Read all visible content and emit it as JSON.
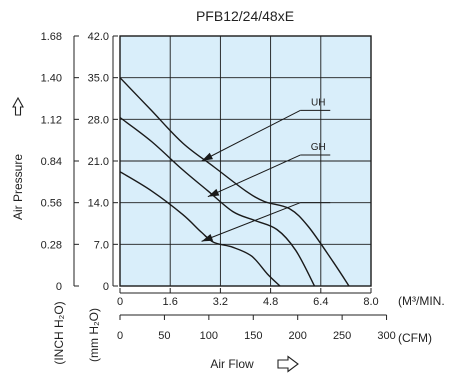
{
  "chart_data": {
    "type": "line",
    "title": "PFB12/24/48xE",
    "xlabel": "Air Flow",
    "ylabel": "Air Pressure",
    "x_axes": {
      "m3_min": {
        "unit": "(M³/MIN.",
        "ticks": [
          "0",
          "1.6",
          "3.2",
          "4.8",
          "6.4",
          "8.0"
        ],
        "range": [
          0,
          8.0
        ]
      },
      "cfm": {
        "unit": "(CFM)",
        "ticks": [
          "0",
          "50",
          "100",
          "150",
          "200",
          "250",
          "300"
        ],
        "range": [
          0,
          282.5
        ]
      }
    },
    "y_axes": {
      "mm_h2o": {
        "unit": "(mm H₂O)",
        "ticks": [
          "0",
          "7.0",
          "14.0",
          "21.0",
          "28.0",
          "35.0",
          "42.0"
        ],
        "range": [
          0,
          42.0
        ]
      },
      "inch_h2o": {
        "unit": "(INCH H₂O)",
        "ticks": [
          "0",
          "0.28",
          "0.56",
          "0.84",
          "1.12",
          "1.40",
          "1.68"
        ],
        "range": [
          0,
          1.68
        ]
      }
    },
    "grid": true,
    "series": [
      {
        "name": "UH",
        "x_unit": "m3_min",
        "y_unit": "mm_h2o",
        "points": [
          [
            0,
            35.0
          ],
          [
            1.0,
            29.5
          ],
          [
            2.0,
            24.0
          ],
          [
            3.0,
            20.0
          ],
          [
            4.0,
            16.0
          ],
          [
            4.6,
            14.2
          ],
          [
            5.4,
            13.0
          ],
          [
            6.0,
            10.0
          ],
          [
            6.8,
            4.0
          ],
          [
            7.3,
            0
          ]
        ]
      },
      {
        "name": "GH",
        "x_unit": "m3_min",
        "y_unit": "mm_h2o",
        "points": [
          [
            0,
            28.3
          ],
          [
            1.0,
            24.3
          ],
          [
            2.0,
            19.5
          ],
          [
            2.8,
            16.0
          ],
          [
            3.6,
            12.5
          ],
          [
            4.3,
            11.0
          ],
          [
            5.0,
            9.5
          ],
          [
            5.6,
            6.0
          ],
          [
            6.2,
            0
          ]
        ]
      },
      {
        "name": "",
        "x_unit": "m3_min",
        "y_unit": "mm_h2o",
        "points": [
          [
            0,
            19.2
          ],
          [
            1.0,
            16.0
          ],
          [
            2.0,
            12.0
          ],
          [
            2.6,
            9.0
          ],
          [
            3.0,
            7.3
          ],
          [
            3.6,
            6.5
          ],
          [
            4.2,
            5.0
          ],
          [
            4.7,
            2.0
          ],
          [
            5.1,
            0
          ]
        ]
      }
    ],
    "annotations": [
      {
        "text": "UH",
        "label_pos": [
          6.0,
          29.5
        ],
        "arrow_to": [
          2.6,
          21.0
        ]
      },
      {
        "text": "GH",
        "label_pos": [
          6.0,
          22.0
        ],
        "arrow_to": [
          2.8,
          15.0
        ]
      },
      {
        "text": "",
        "label_pos": [
          6.0,
          14.0
        ],
        "arrow_to": [
          2.6,
          7.5
        ]
      }
    ],
    "colors": {
      "plot_background": "#d9eefa",
      "curve": "#1a1a1a",
      "grid": "#1a1a1a"
    },
    "icons": {
      "y_arrow": "up-arrow-outline-icon",
      "x_arrow": "right-arrow-outline-icon"
    }
  }
}
